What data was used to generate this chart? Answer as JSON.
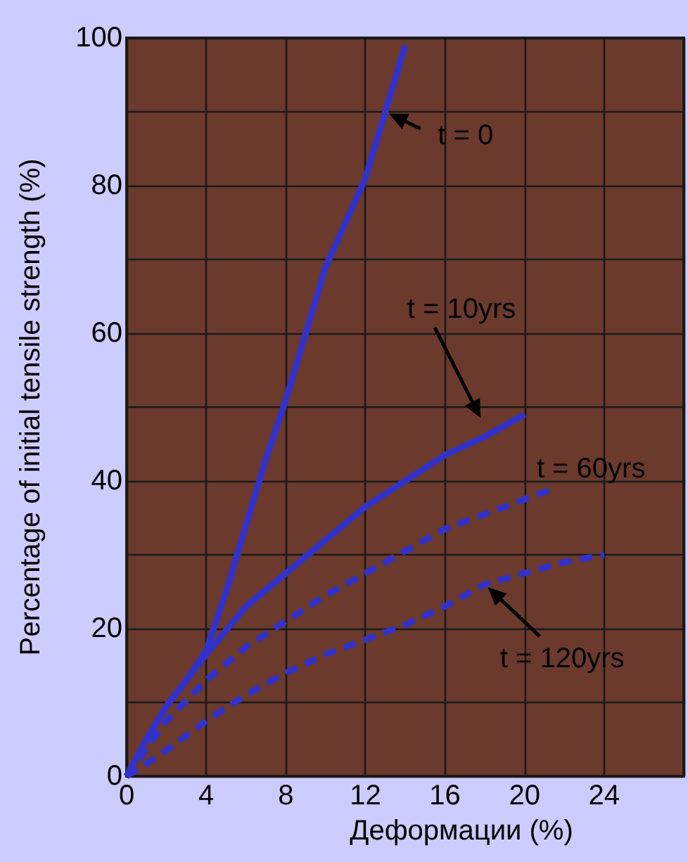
{
  "chart_data": {
    "type": "line",
    "xlabel": "Деформации (%)",
    "ylabel": "Percentage of initial tensile strength (%)",
    "xlim": [
      0,
      28
    ],
    "xticks": [
      0,
      4,
      8,
      12,
      16,
      20,
      24,
      {
        "value": 28,
        "label": null
      }
    ],
    "ylim": [
      0,
      100
    ],
    "yticks": [
      0,
      {
        "value": 10,
        "label": null
      },
      20,
      {
        "value": 30,
        "label": null
      },
      40,
      {
        "value": 50,
        "label": null
      },
      60,
      {
        "value": 70,
        "label": null
      },
      80,
      {
        "value": 90,
        "label": null
      },
      100
    ],
    "grid": true,
    "marker": "none",
    "series": [
      {
        "color": "#3333cc",
        "line_style": "solid",
        "x": [
          0,
          1,
          2,
          3,
          4,
          5,
          6,
          7,
          8,
          9,
          10,
          11,
          12,
          13,
          14
        ],
        "values": [
          0,
          5,
          9.5,
          13,
          17,
          25,
          34,
          43,
          51,
          60,
          69,
          75,
          81,
          90,
          99
        ]
      },
      {
        "color": "#3333cc",
        "line_style": "solid",
        "x": [
          0,
          1,
          2,
          3,
          4,
          6,
          8,
          10,
          12,
          14,
          16,
          18,
          20
        ],
        "values": [
          0,
          5,
          9.5,
          13,
          16.5,
          23,
          27.5,
          32,
          36.5,
          40,
          43.5,
          46,
          49
        ]
      },
      {
        "color": "#3333cc",
        "line_style": "dashed",
        "x": [
          0,
          2,
          4,
          6,
          8,
          10,
          12,
          14,
          16,
          18,
          20,
          21.5
        ],
        "values": [
          0,
          7.5,
          13,
          17.5,
          21,
          24.5,
          27.5,
          30.5,
          33.5,
          35.5,
          37.5,
          39
        ]
      },
      {
        "color": "#3333cc",
        "line_style": "dashed",
        "x": [
          0,
          2,
          4,
          6,
          8,
          10,
          12,
          14,
          16,
          18,
          20,
          22,
          24
        ],
        "values": [
          0,
          3.5,
          7.5,
          11,
          14,
          16.5,
          18.5,
          20.5,
          23,
          26,
          27.5,
          29,
          30
        ]
      }
    ],
    "annotations": [
      {
        "text": "t = 0",
        "x": 13,
        "y": 90
      },
      "t = 10yrs",
      {
        "text": "t = 60yrs",
        "x": 21.5,
        "y": 39
      },
      {
        "text": "t = 120yrs",
        "x": 18,
        "y": 26
      }
    ]
  }
}
